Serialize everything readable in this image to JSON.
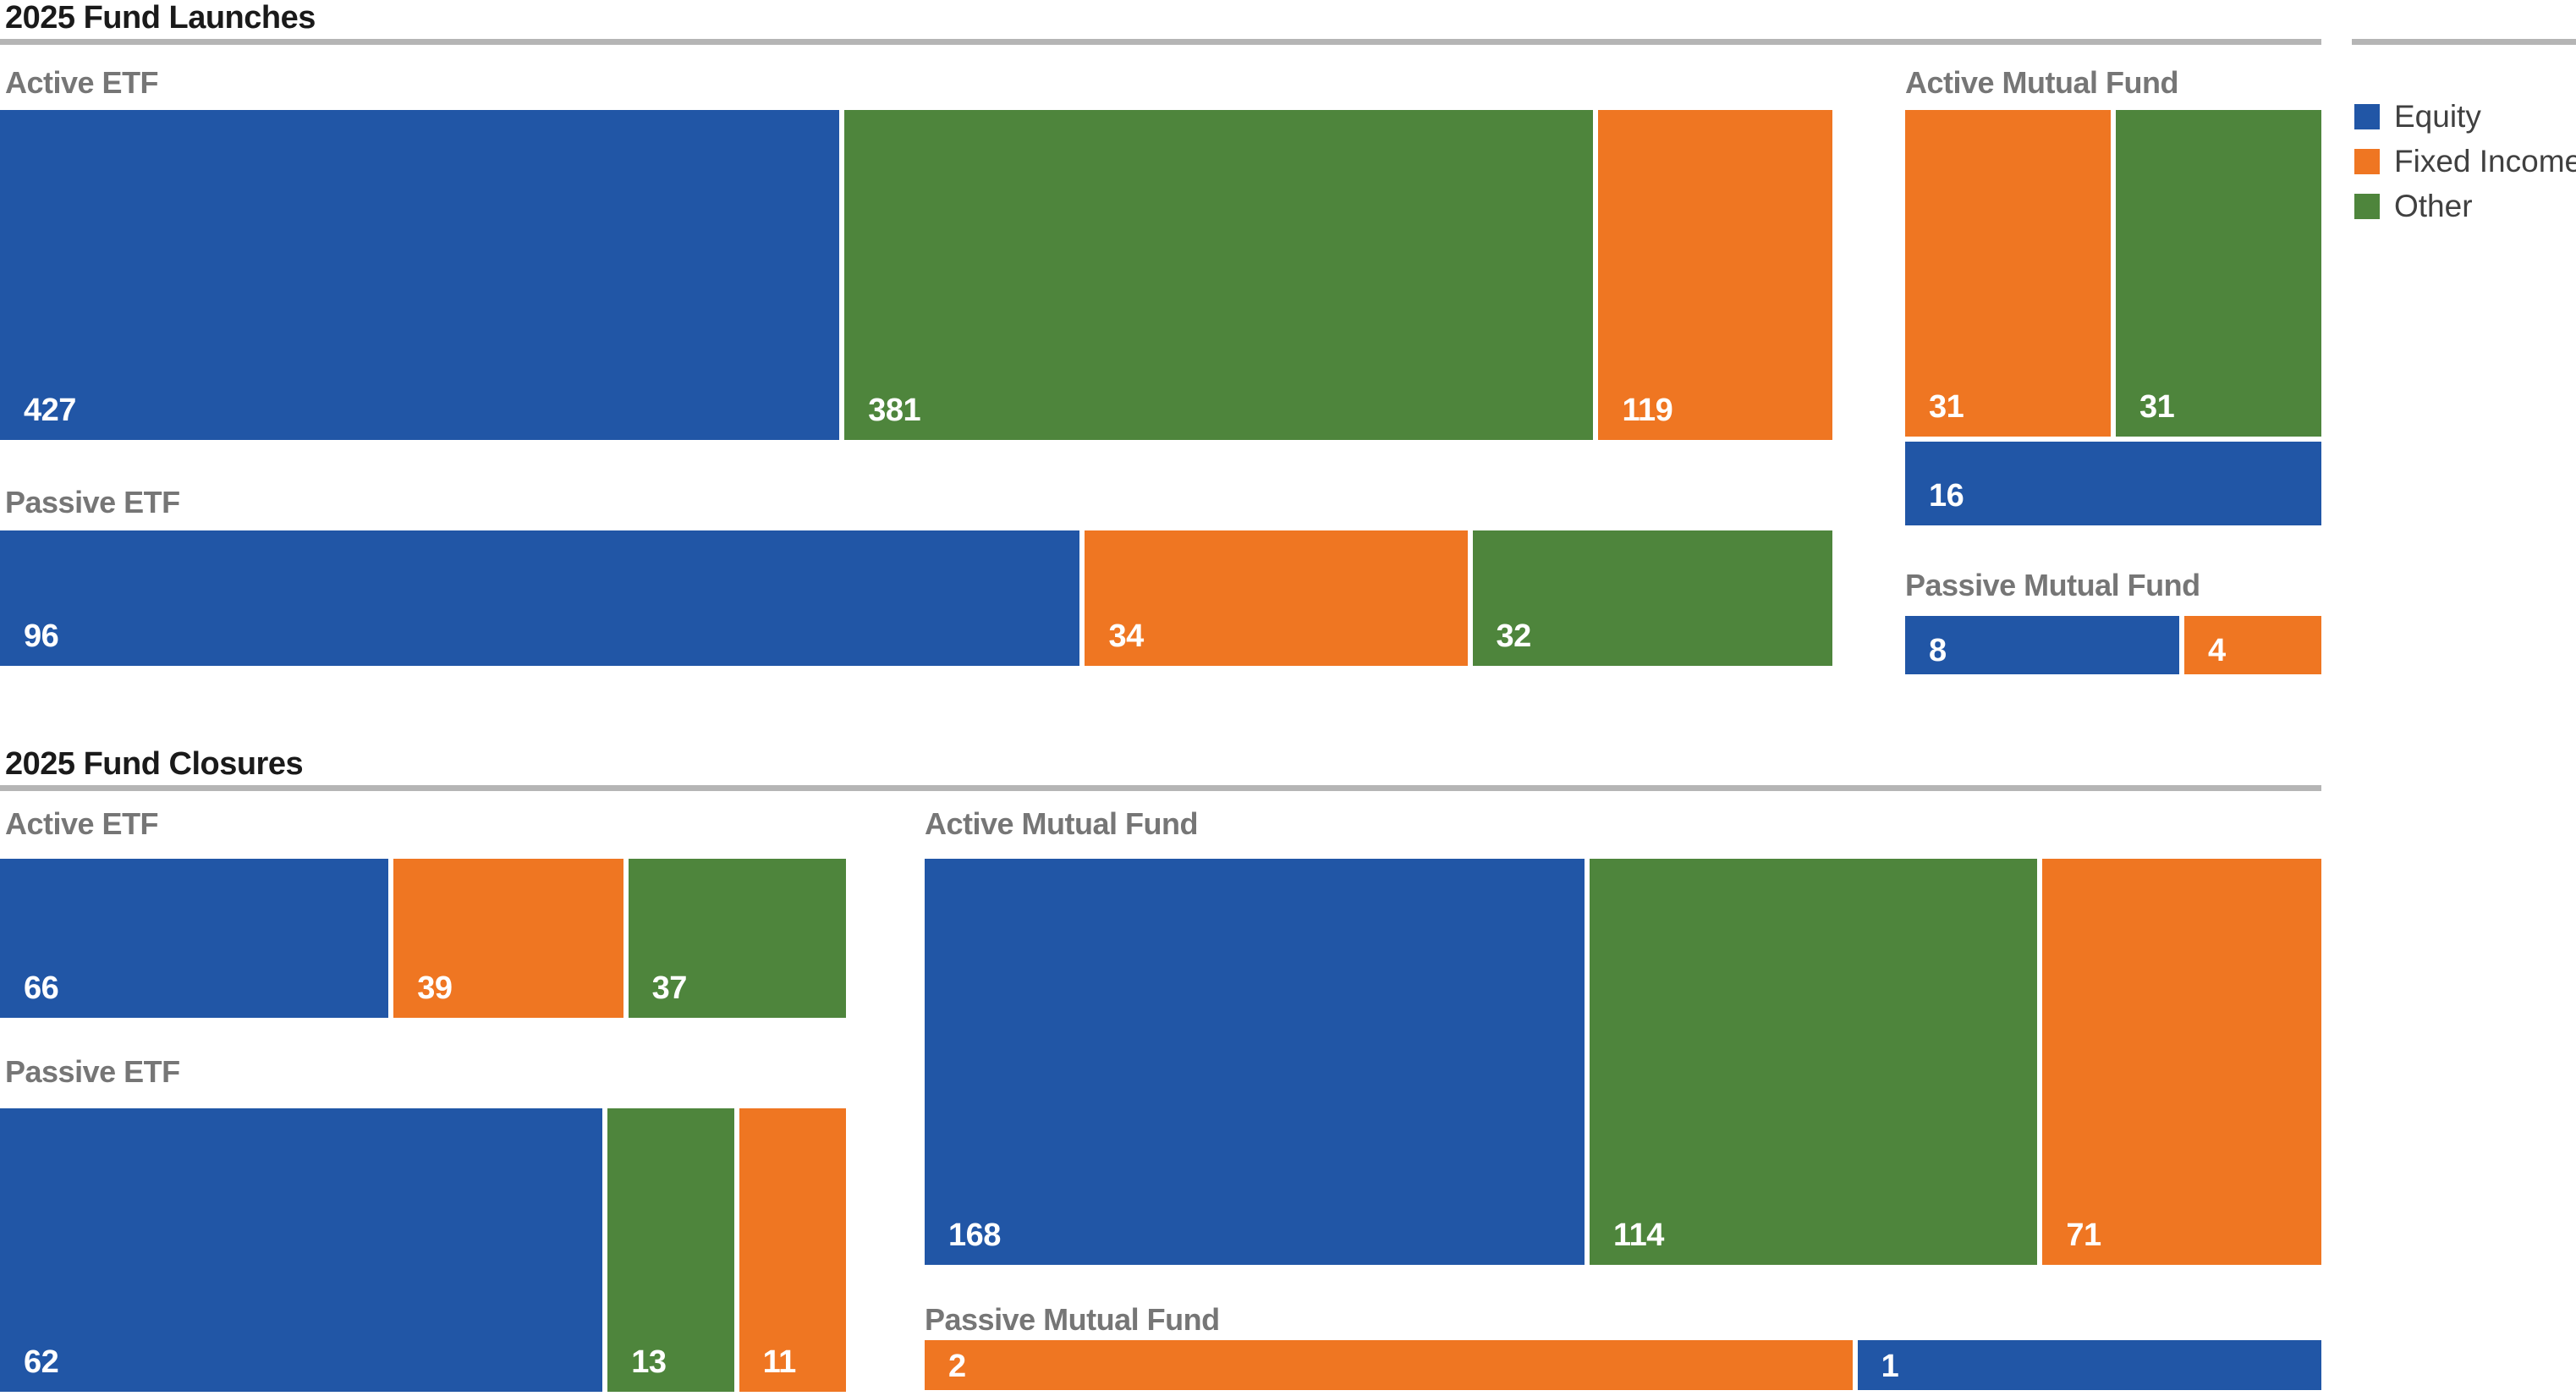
{
  "chart_data": {
    "type": "bar",
    "subtype": "proportional-stacked-bars-treemap-style",
    "legend_position": "top-right",
    "grid": false,
    "categories": [
      "Equity",
      "Fixed Income",
      "Other"
    ],
    "colors": {
      "Equity": "#2156a6",
      "Fixed Income": "#ef7622",
      "Other": "#4e853c"
    },
    "sections": [
      {
        "title": "2025 Fund Launches",
        "panels": [
          {
            "label": "Active ETF",
            "segments": [
              {
                "category": "Equity",
                "value": 427
              },
              {
                "category": "Other",
                "value": 381
              },
              {
                "category": "Fixed Income",
                "value": 119
              }
            ]
          },
          {
            "label": "Passive ETF",
            "segments": [
              {
                "category": "Equity",
                "value": 96
              },
              {
                "category": "Fixed Income",
                "value": 34
              },
              {
                "category": "Other",
                "value": 32
              }
            ]
          },
          {
            "label": "Active Mutual Fund",
            "rows": [
              [
                {
                  "category": "Fixed Income",
                  "value": 31
                },
                {
                  "category": "Other",
                  "value": 31
                }
              ],
              [
                {
                  "category": "Equity",
                  "value": 16
                }
              ]
            ]
          },
          {
            "label": "Passive Mutual Fund",
            "segments": [
              {
                "category": "Equity",
                "value": 8
              },
              {
                "category": "Fixed Income",
                "value": 4
              }
            ]
          }
        ]
      },
      {
        "title": "2025 Fund Closures",
        "panels": [
          {
            "label": "Active ETF",
            "segments": [
              {
                "category": "Equity",
                "value": 66
              },
              {
                "category": "Fixed Income",
                "value": 39
              },
              {
                "category": "Other",
                "value": 37
              }
            ]
          },
          {
            "label": "Passive ETF",
            "segments": [
              {
                "category": "Equity",
                "value": 62
              },
              {
                "category": "Other",
                "value": 13
              },
              {
                "category": "Fixed Income",
                "value": 11
              }
            ]
          },
          {
            "label": "Active Mutual Fund",
            "segments": [
              {
                "category": "Equity",
                "value": 168
              },
              {
                "category": "Other",
                "value": 114
              },
              {
                "category": "Fixed Income",
                "value": 71
              }
            ]
          },
          {
            "label": "Passive Mutual Fund",
            "segments": [
              {
                "category": "Fixed Income",
                "value": 2
              },
              {
                "category": "Equity",
                "value": 1
              }
            ]
          }
        ]
      }
    ]
  },
  "ui": {
    "divider_color": "#b5b5b5",
    "section_title_color": "#1a1a1a",
    "panel_label_color": "#767676",
    "value_label_color": "#ffffff",
    "background_color": "#ffffff"
  }
}
